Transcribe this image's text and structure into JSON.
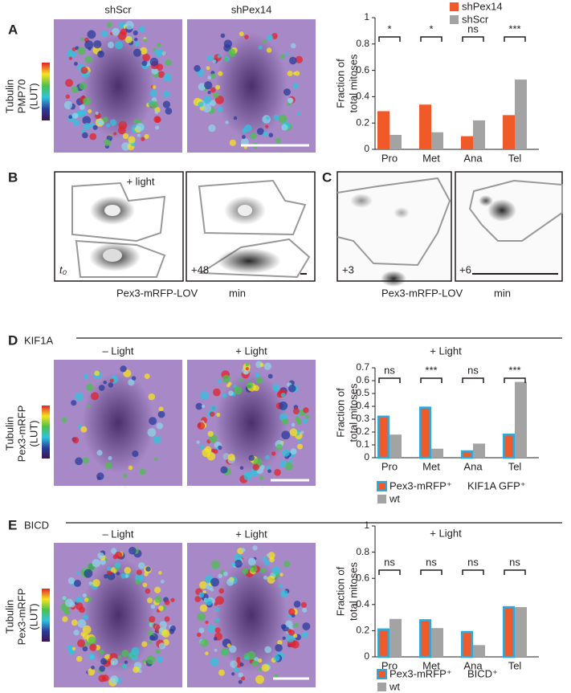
{
  "panels": {
    "A": {
      "label": "A",
      "titles": [
        "shScr",
        "shPex14"
      ],
      "side_labels": [
        "Tubulin",
        "PMP70",
        "(LUT)"
      ]
    },
    "B": {
      "label": "B",
      "light": "+ light",
      "times": [
        "t₀",
        "+48"
      ],
      "caption": "Pex3-mRFP-LOV",
      "unit": "min"
    },
    "C": {
      "label": "C",
      "times": [
        "+3",
        "+6"
      ],
      "caption": "Pex3-mRFP-LOV",
      "unit": "min"
    },
    "D": {
      "label": "D",
      "heading": "KIF1A",
      "titles": [
        "– Light",
        "+ Light"
      ],
      "side_labels": [
        "Tubulin",
        "Pex3-mRFP",
        "(LUT)"
      ]
    },
    "E": {
      "label": "E",
      "heading": "BICD",
      "titles": [
        "– Light",
        "+ Light"
      ],
      "side_labels": [
        "Tubulin",
        "Pex3-mRFP",
        "(LUT)"
      ]
    }
  },
  "chart_data": [
    {
      "type": "bar",
      "y_label": [
        "Fraction of",
        "total mitoses"
      ],
      "categories": [
        "Pro",
        "Met",
        "Ana",
        "Tel"
      ],
      "series": [
        {
          "name": "shPex14",
          "color": "#f05a28",
          "label_color": "#f05a28",
          "values": [
            0.29,
            0.34,
            0.1,
            0.26
          ]
        },
        {
          "name": "shScr",
          "color": "#a3a3a3",
          "label_color": "#a3a3a3",
          "values": [
            0.11,
            0.13,
            0.22,
            0.53
          ]
        }
      ],
      "significance": [
        "*",
        "*",
        "ns",
        "***"
      ],
      "ylim": [
        0,
        1
      ],
      "yticks": [
        0,
        0.2,
        0.4,
        0.6,
        0.8,
        1
      ],
      "grid": false,
      "legend": "top-right"
    },
    {
      "type": "bar",
      "subtitle": "+ Light",
      "y_label": [
        "Fraction of",
        "total mitoses"
      ],
      "categories": [
        "Pro",
        "Met",
        "Ana",
        "Tel"
      ],
      "series": [
        {
          "name": "Pex3-mRFP⁺",
          "color": "#f05a28",
          "edgecolor": "#29abe2",
          "label_color": "#f05a28",
          "values": [
            0.32,
            0.39,
            0.05,
            0.18
          ]
        },
        {
          "name": "wt",
          "color": "#a3a3a3",
          "label_color": "#231f20",
          "values": [
            0.18,
            0.07,
            0.11,
            0.59
          ]
        }
      ],
      "legend_extra": {
        "text": "KIF1A GFP⁺",
        "color": "#29abe2"
      },
      "significance": [
        "ns",
        "***",
        "ns",
        "***"
      ],
      "ylim": [
        0,
        0.7
      ],
      "yticks": [
        0,
        0.1,
        0.2,
        0.3,
        0.4,
        0.5,
        0.6,
        0.7
      ],
      "grid": false,
      "legend": "bottom"
    },
    {
      "type": "bar",
      "subtitle": "+ Light",
      "y_label": [
        "Fraction of",
        "total mitoses"
      ],
      "categories": [
        "Pro",
        "Met",
        "Ana",
        "Tel"
      ],
      "series": [
        {
          "name": "Pex3-mRFP⁺",
          "color": "#f05a28",
          "edgecolor": "#29abe2",
          "label_color": "#f05a28",
          "values": [
            0.21,
            0.28,
            0.19,
            0.38
          ]
        },
        {
          "name": "wt",
          "color": "#a3a3a3",
          "label_color": "#231f20",
          "values": [
            0.29,
            0.22,
            0.09,
            0.38
          ]
        }
      ],
      "legend_extra": {
        "text": "BICD⁺",
        "color": "#29abe2"
      },
      "significance": [
        "ns",
        "ns",
        "ns",
        "ns"
      ],
      "ylim": [
        0,
        1
      ],
      "yticks": [
        0,
        0.2,
        0.4,
        0.6,
        0.8,
        1
      ],
      "grid": false,
      "legend": "bottom"
    }
  ]
}
